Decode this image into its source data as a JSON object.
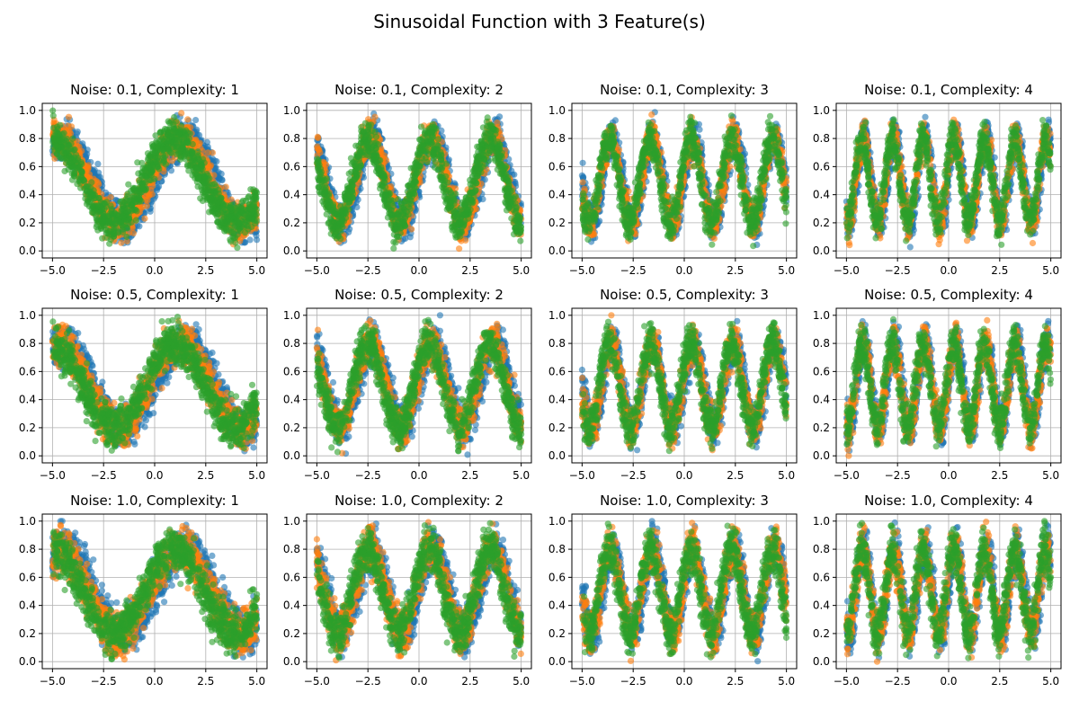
{
  "figure": {
    "suptitle": "Sinusoidal Function with 3 Feature(s)"
  },
  "colors": {
    "series": [
      "#1f77b4",
      "#ff7f0e",
      "#2ca02c"
    ],
    "grid": "#b0b0b0",
    "axes": "#000000",
    "background": "#ffffff"
  },
  "chart_data": [
    {
      "type": "scatter",
      "title": "Noise: 0.1, Complexity: 1",
      "noise": 0.1,
      "complexity": 1,
      "xlim": [
        -5.5,
        5.5
      ],
      "ylim": [
        -0.05,
        1.05
      ],
      "xticks": [
        -5.0,
        -2.5,
        0.0,
        2.5,
        5.0
      ],
      "xtick_labels": [
        "−5.0",
        "−2.5",
        "0.0",
        "2.5",
        "5.0"
      ],
      "yticks": [
        0.0,
        0.2,
        0.4,
        0.6,
        0.8,
        1.0
      ],
      "ytick_labels": [
        "0.0",
        "0.2",
        "0.4",
        "0.6",
        "0.8",
        "1.0"
      ],
      "grid": true,
      "series_count": 3,
      "points_per_series": 1000,
      "marker_alpha": 0.6
    },
    {
      "type": "scatter",
      "title": "Noise: 0.1, Complexity: 2",
      "noise": 0.1,
      "complexity": 2,
      "xlim": [
        -5.5,
        5.5
      ],
      "ylim": [
        -0.05,
        1.05
      ],
      "xticks": [
        -5.0,
        -2.5,
        0.0,
        2.5,
        5.0
      ],
      "xtick_labels": [
        "−5.0",
        "−2.5",
        "0.0",
        "2.5",
        "5.0"
      ],
      "yticks": [
        0.0,
        0.2,
        0.4,
        0.6,
        0.8,
        1.0
      ],
      "ytick_labels": [
        "0.0",
        "0.2",
        "0.4",
        "0.6",
        "0.8",
        "1.0"
      ],
      "grid": true,
      "series_count": 3,
      "points_per_series": 1000,
      "marker_alpha": 0.6
    },
    {
      "type": "scatter",
      "title": "Noise: 0.1, Complexity: 3",
      "noise": 0.1,
      "complexity": 3,
      "xlim": [
        -5.5,
        5.5
      ],
      "ylim": [
        -0.05,
        1.05
      ],
      "xticks": [
        -5.0,
        -2.5,
        0.0,
        2.5,
        5.0
      ],
      "xtick_labels": [
        "−5.0",
        "−2.5",
        "0.0",
        "2.5",
        "5.0"
      ],
      "yticks": [
        0.0,
        0.2,
        0.4,
        0.6,
        0.8,
        1.0
      ],
      "ytick_labels": [
        "0.0",
        "0.2",
        "0.4",
        "0.6",
        "0.8",
        "1.0"
      ],
      "grid": true,
      "series_count": 3,
      "points_per_series": 1000,
      "marker_alpha": 0.6
    },
    {
      "type": "scatter",
      "title": "Noise: 0.1, Complexity: 4",
      "noise": 0.1,
      "complexity": 4,
      "xlim": [
        -5.5,
        5.5
      ],
      "ylim": [
        -0.05,
        1.05
      ],
      "xticks": [
        -5.0,
        -2.5,
        0.0,
        2.5,
        5.0
      ],
      "xtick_labels": [
        "−5.0",
        "−2.5",
        "0.0",
        "2.5",
        "5.0"
      ],
      "yticks": [
        0.0,
        0.2,
        0.4,
        0.6,
        0.8,
        1.0
      ],
      "ytick_labels": [
        "0.0",
        "0.2",
        "0.4",
        "0.6",
        "0.8",
        "1.0"
      ],
      "grid": true,
      "series_count": 3,
      "points_per_series": 1000,
      "marker_alpha": 0.6
    },
    {
      "type": "scatter",
      "title": "Noise: 0.5, Complexity: 1",
      "noise": 0.5,
      "complexity": 1,
      "xlim": [
        -5.5,
        5.5
      ],
      "ylim": [
        -0.05,
        1.05
      ],
      "xticks": [
        -5.0,
        -2.5,
        0.0,
        2.5,
        5.0
      ],
      "xtick_labels": [
        "−5.0",
        "−2.5",
        "0.0",
        "2.5",
        "5.0"
      ],
      "yticks": [
        0.0,
        0.2,
        0.4,
        0.6,
        0.8,
        1.0
      ],
      "ytick_labels": [
        "0.0",
        "0.2",
        "0.4",
        "0.6",
        "0.8",
        "1.0"
      ],
      "grid": true,
      "series_count": 3,
      "points_per_series": 1000,
      "marker_alpha": 0.6
    },
    {
      "type": "scatter",
      "title": "Noise: 0.5, Complexity: 2",
      "noise": 0.5,
      "complexity": 2,
      "xlim": [
        -5.5,
        5.5
      ],
      "ylim": [
        -0.05,
        1.05
      ],
      "xticks": [
        -5.0,
        -2.5,
        0.0,
        2.5,
        5.0
      ],
      "xtick_labels": [
        "−5.0",
        "−2.5",
        "0.0",
        "2.5",
        "5.0"
      ],
      "yticks": [
        0.0,
        0.2,
        0.4,
        0.6,
        0.8,
        1.0
      ],
      "ytick_labels": [
        "0.0",
        "0.2",
        "0.4",
        "0.6",
        "0.8",
        "1.0"
      ],
      "grid": true,
      "series_count": 3,
      "points_per_series": 1000,
      "marker_alpha": 0.6
    },
    {
      "type": "scatter",
      "title": "Noise: 0.5, Complexity: 3",
      "noise": 0.5,
      "complexity": 3,
      "xlim": [
        -5.5,
        5.5
      ],
      "ylim": [
        -0.05,
        1.05
      ],
      "xticks": [
        -5.0,
        -2.5,
        0.0,
        2.5,
        5.0
      ],
      "xtick_labels": [
        "−5.0",
        "−2.5",
        "0.0",
        "2.5",
        "5.0"
      ],
      "yticks": [
        0.0,
        0.2,
        0.4,
        0.6,
        0.8,
        1.0
      ],
      "ytick_labels": [
        "0.0",
        "0.2",
        "0.4",
        "0.6",
        "0.8",
        "1.0"
      ],
      "grid": true,
      "series_count": 3,
      "points_per_series": 1000,
      "marker_alpha": 0.6
    },
    {
      "type": "scatter",
      "title": "Noise: 0.5, Complexity: 4",
      "noise": 0.5,
      "complexity": 4,
      "xlim": [
        -5.5,
        5.5
      ],
      "ylim": [
        -0.05,
        1.05
      ],
      "xticks": [
        -5.0,
        -2.5,
        0.0,
        2.5,
        5.0
      ],
      "xtick_labels": [
        "−5.0",
        "−2.5",
        "0.0",
        "2.5",
        "5.0"
      ],
      "yticks": [
        0.0,
        0.2,
        0.4,
        0.6,
        0.8,
        1.0
      ],
      "ytick_labels": [
        "0.0",
        "0.2",
        "0.4",
        "0.6",
        "0.8",
        "1.0"
      ],
      "grid": true,
      "series_count": 3,
      "points_per_series": 1000,
      "marker_alpha": 0.6
    },
    {
      "type": "scatter",
      "title": "Noise: 1.0, Complexity: 1",
      "noise": 1.0,
      "complexity": 1,
      "xlim": [
        -5.5,
        5.5
      ],
      "ylim": [
        -0.05,
        1.05
      ],
      "xticks": [
        -5.0,
        -2.5,
        0.0,
        2.5,
        5.0
      ],
      "xtick_labels": [
        "−5.0",
        "−2.5",
        "0.0",
        "2.5",
        "5.0"
      ],
      "yticks": [
        0.0,
        0.2,
        0.4,
        0.6,
        0.8,
        1.0
      ],
      "ytick_labels": [
        "0.0",
        "0.2",
        "0.4",
        "0.6",
        "0.8",
        "1.0"
      ],
      "grid": true,
      "series_count": 3,
      "points_per_series": 1000,
      "marker_alpha": 0.6
    },
    {
      "type": "scatter",
      "title": "Noise: 1.0, Complexity: 2",
      "noise": 1.0,
      "complexity": 2,
      "xlim": [
        -5.5,
        5.5
      ],
      "ylim": [
        -0.05,
        1.05
      ],
      "xticks": [
        -5.0,
        -2.5,
        0.0,
        2.5,
        5.0
      ],
      "xtick_labels": [
        "−5.0",
        "−2.5",
        "0.0",
        "2.5",
        "5.0"
      ],
      "yticks": [
        0.0,
        0.2,
        0.4,
        0.6,
        0.8,
        1.0
      ],
      "ytick_labels": [
        "0.0",
        "0.2",
        "0.4",
        "0.6",
        "0.8",
        "1.0"
      ],
      "grid": true,
      "series_count": 3,
      "points_per_series": 1000,
      "marker_alpha": 0.6
    },
    {
      "type": "scatter",
      "title": "Noise: 1.0, Complexity: 3",
      "noise": 1.0,
      "complexity": 3,
      "xlim": [
        -5.5,
        5.5
      ],
      "ylim": [
        -0.05,
        1.05
      ],
      "xticks": [
        -5.0,
        -2.5,
        0.0,
        2.5,
        5.0
      ],
      "xtick_labels": [
        "−5.0",
        "−2.5",
        "0.0",
        "2.5",
        "5.0"
      ],
      "yticks": [
        0.0,
        0.2,
        0.4,
        0.6,
        0.8,
        1.0
      ],
      "ytick_labels": [
        "0.0",
        "0.2",
        "0.4",
        "0.6",
        "0.8",
        "1.0"
      ],
      "grid": true,
      "series_count": 3,
      "points_per_series": 1000,
      "marker_alpha": 0.6
    },
    {
      "type": "scatter",
      "title": "Noise: 1.0, Complexity: 4",
      "noise": 1.0,
      "complexity": 4,
      "xlim": [
        -5.5,
        5.5
      ],
      "ylim": [
        -0.05,
        1.05
      ],
      "xticks": [
        -5.0,
        -2.5,
        0.0,
        2.5,
        5.0
      ],
      "xtick_labels": [
        "−5.0",
        "−2.5",
        "0.0",
        "2.5",
        "5.0"
      ],
      "yticks": [
        0.0,
        0.2,
        0.4,
        0.6,
        0.8,
        1.0
      ],
      "ytick_labels": [
        "0.0",
        "0.2",
        "0.4",
        "0.6",
        "0.8",
        "1.0"
      ],
      "grid": true,
      "series_count": 3,
      "points_per_series": 1000,
      "marker_alpha": 0.6
    }
  ]
}
